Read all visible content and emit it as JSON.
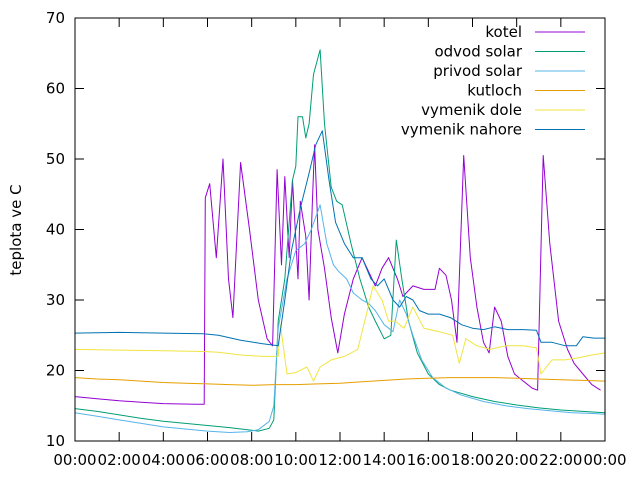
{
  "chart_data": {
    "type": "line",
    "title": "",
    "xlabel": "",
    "ylabel": "teplota ve C",
    "xlim": [
      0,
      24
    ],
    "ylim": [
      10,
      70
    ],
    "x_ticks": [
      "00:00",
      "02:00",
      "04:00",
      "06:00",
      "08:00",
      "10:00",
      "12:00",
      "14:00",
      "16:00",
      "18:00",
      "20:00",
      "22:00",
      "00:00"
    ],
    "y_ticks": [
      10,
      20,
      30,
      40,
      50,
      60,
      70
    ],
    "grid": false,
    "legend_position": "top-right",
    "series": [
      {
        "name": "kotel",
        "color": "#9400d3",
        "points": [
          [
            0,
            16.3
          ],
          [
            1,
            16.0
          ],
          [
            2,
            15.7
          ],
          [
            3,
            15.5
          ],
          [
            4,
            15.3
          ],
          [
            5.5,
            15.2
          ],
          [
            5.85,
            15.2
          ],
          [
            5.9,
            44.5
          ],
          [
            6.1,
            46.5
          ],
          [
            6.4,
            36
          ],
          [
            6.7,
            50
          ],
          [
            6.95,
            33
          ],
          [
            7.15,
            27.5
          ],
          [
            7.5,
            49.5
          ],
          [
            7.9,
            40
          ],
          [
            8.3,
            30
          ],
          [
            8.7,
            24.5
          ],
          [
            8.95,
            23.5
          ],
          [
            9.15,
            48.5
          ],
          [
            9.35,
            35
          ],
          [
            9.5,
            47.5
          ],
          [
            9.7,
            36
          ],
          [
            9.85,
            47
          ],
          [
            10.1,
            33
          ],
          [
            10.2,
            44
          ],
          [
            10.45,
            39
          ],
          [
            10.6,
            30
          ],
          [
            10.75,
            44
          ],
          [
            10.85,
            52
          ],
          [
            11.0,
            40
          ],
          [
            11.3,
            34.5
          ],
          [
            11.6,
            27.5
          ],
          [
            11.9,
            22.5
          ],
          [
            12.2,
            28
          ],
          [
            12.6,
            33
          ],
          [
            13.0,
            36
          ],
          [
            13.3,
            34
          ],
          [
            13.6,
            32
          ],
          [
            13.9,
            34.5
          ],
          [
            14.2,
            36
          ],
          [
            14.6,
            33
          ],
          [
            14.85,
            30.5
          ],
          [
            15.3,
            32
          ],
          [
            15.8,
            31.5
          ],
          [
            16.3,
            31.5
          ],
          [
            16.5,
            34.5
          ],
          [
            16.8,
            33.5
          ],
          [
            17.05,
            30
          ],
          [
            17.3,
            24
          ],
          [
            17.6,
            50.5
          ],
          [
            17.9,
            36
          ],
          [
            18.2,
            29
          ],
          [
            18.5,
            24
          ],
          [
            18.75,
            22.5
          ],
          [
            19.0,
            29
          ],
          [
            19.3,
            27
          ],
          [
            19.6,
            22
          ],
          [
            19.9,
            19.5
          ],
          [
            20.3,
            18.5
          ],
          [
            20.7,
            17.5
          ],
          [
            20.95,
            17.2
          ],
          [
            21.2,
            50.5
          ],
          [
            21.5,
            38
          ],
          [
            21.9,
            27
          ],
          [
            22.3,
            23
          ],
          [
            22.6,
            21
          ],
          [
            23,
            19.5
          ],
          [
            23.4,
            18
          ],
          [
            23.8,
            17.2
          ]
        ]
      },
      {
        "name": "odvod solar",
        "color": "#009e73",
        "points": [
          [
            0,
            14.6
          ],
          [
            1,
            14.2
          ],
          [
            2,
            13.7
          ],
          [
            3,
            13.2
          ],
          [
            4,
            12.8
          ],
          [
            5,
            12.5
          ],
          [
            6,
            12.2
          ],
          [
            7,
            11.9
          ],
          [
            7.8,
            11.6
          ],
          [
            8.3,
            11.4
          ],
          [
            8.8,
            11.8
          ],
          [
            9.0,
            13
          ],
          [
            9.2,
            27
          ],
          [
            9.5,
            33
          ],
          [
            9.7,
            41
          ],
          [
            9.85,
            47
          ],
          [
            10.0,
            49
          ],
          [
            10.1,
            56
          ],
          [
            10.3,
            56
          ],
          [
            10.45,
            53
          ],
          [
            10.6,
            55
          ],
          [
            10.8,
            62
          ],
          [
            11.1,
            65.5
          ],
          [
            11.3,
            55
          ],
          [
            11.6,
            46
          ],
          [
            11.85,
            44
          ],
          [
            12.1,
            43.5
          ],
          [
            12.5,
            38
          ],
          [
            12.9,
            33
          ],
          [
            13.3,
            29
          ],
          [
            13.6,
            27
          ],
          [
            14.0,
            24.5
          ],
          [
            14.3,
            25
          ],
          [
            14.55,
            38.5
          ],
          [
            14.8,
            33
          ],
          [
            15.1,
            27
          ],
          [
            15.5,
            22.5
          ],
          [
            16.0,
            19.5
          ],
          [
            16.5,
            18
          ],
          [
            17,
            17.2
          ],
          [
            18,
            16.3
          ],
          [
            19,
            15.6
          ],
          [
            20,
            15.1
          ],
          [
            21,
            14.7
          ],
          [
            22,
            14.4
          ],
          [
            23,
            14.2
          ],
          [
            24,
            14.0
          ]
        ]
      },
      {
        "name": "privod solar",
        "color": "#56b4e9",
        "points": [
          [
            0,
            14.0
          ],
          [
            1,
            13.5
          ],
          [
            2,
            13.0
          ],
          [
            3,
            12.5
          ],
          [
            4,
            12.0
          ],
          [
            5,
            11.7
          ],
          [
            6,
            11.4
          ],
          [
            7,
            11.2
          ],
          [
            7.8,
            11.3
          ],
          [
            8.3,
            11.6
          ],
          [
            8.8,
            12.8
          ],
          [
            9.0,
            15
          ],
          [
            9.2,
            26
          ],
          [
            9.6,
            33
          ],
          [
            10.0,
            37
          ],
          [
            10.4,
            38
          ],
          [
            10.7,
            40
          ],
          [
            11.1,
            43.5
          ],
          [
            11.4,
            38
          ],
          [
            11.7,
            35
          ],
          [
            11.95,
            34
          ],
          [
            12.3,
            33
          ],
          [
            12.6,
            31
          ],
          [
            13.0,
            30
          ],
          [
            13.3,
            29.5
          ],
          [
            13.6,
            28.5
          ],
          [
            14.0,
            26.5
          ],
          [
            14.4,
            25.5
          ],
          [
            14.7,
            30
          ],
          [
            15.0,
            28
          ],
          [
            15.3,
            25
          ],
          [
            15.7,
            21.5
          ],
          [
            16.2,
            19
          ],
          [
            16.8,
            17.5
          ],
          [
            17.5,
            16.5
          ],
          [
            18.5,
            15.6
          ],
          [
            19.5,
            15.0
          ],
          [
            20.5,
            14.6
          ],
          [
            21.5,
            14.3
          ],
          [
            22.5,
            14.0
          ],
          [
            23.5,
            13.9
          ],
          [
            24,
            13.8
          ]
        ]
      },
      {
        "name": "kutloch",
        "color": "#e69f00",
        "points": [
          [
            0,
            19.0
          ],
          [
            1,
            18.8
          ],
          [
            2,
            18.7
          ],
          [
            3,
            18.5
          ],
          [
            4,
            18.3
          ],
          [
            5,
            18.2
          ],
          [
            6,
            18.1
          ],
          [
            7,
            18.0
          ],
          [
            8,
            17.9
          ],
          [
            9,
            18.0
          ],
          [
            10,
            18.0
          ],
          [
            11,
            18.1
          ],
          [
            12,
            18.2
          ],
          [
            13,
            18.4
          ],
          [
            14,
            18.6
          ],
          [
            15,
            18.8
          ],
          [
            16,
            18.9
          ],
          [
            17,
            19.0
          ],
          [
            18,
            19.0
          ],
          [
            19,
            19.0
          ],
          [
            20,
            18.9
          ],
          [
            21,
            18.8
          ],
          [
            22,
            18.7
          ],
          [
            23,
            18.6
          ],
          [
            24,
            18.5
          ]
        ]
      },
      {
        "name": "vymenik dole",
        "color": "#f0e442",
        "points": [
          [
            0,
            23.0
          ],
          [
            2,
            22.9
          ],
          [
            4,
            22.8
          ],
          [
            5.8,
            22.7
          ],
          [
            6.5,
            22.6
          ],
          [
            7.5,
            22.2
          ],
          [
            8.5,
            22.0
          ],
          [
            9.2,
            22.0
          ],
          [
            9.3,
            26.5
          ],
          [
            9.6,
            19.5
          ],
          [
            10.0,
            19.7
          ],
          [
            10.5,
            20.5
          ],
          [
            10.8,
            18.5
          ],
          [
            11.1,
            20.5
          ],
          [
            11.6,
            21.5
          ],
          [
            12.2,
            22
          ],
          [
            12.8,
            23
          ],
          [
            13.2,
            28
          ],
          [
            13.5,
            32
          ],
          [
            13.9,
            30
          ],
          [
            14.2,
            27
          ],
          [
            14.5,
            27
          ],
          [
            14.9,
            26
          ],
          [
            15.3,
            29
          ],
          [
            15.8,
            26
          ],
          [
            16.5,
            25.5
          ],
          [
            17.1,
            25
          ],
          [
            17.4,
            21
          ],
          [
            17.7,
            24.5
          ],
          [
            18.2,
            23.5
          ],
          [
            18.8,
            23
          ],
          [
            19.5,
            23.5
          ],
          [
            20.3,
            23.5
          ],
          [
            20.9,
            23.2
          ],
          [
            21.1,
            19.5
          ],
          [
            21.6,
            21.5
          ],
          [
            22.2,
            21.5
          ],
          [
            22.8,
            21.8
          ],
          [
            23.4,
            22.2
          ],
          [
            24,
            22.5
          ]
        ]
      },
      {
        "name": "vymenik nahore",
        "color": "#0072b2",
        "points": [
          [
            0,
            25.3
          ],
          [
            2,
            25.4
          ],
          [
            4,
            25.3
          ],
          [
            5.8,
            25.2
          ],
          [
            6.5,
            25.0
          ],
          [
            7.5,
            24.3
          ],
          [
            8.5,
            23.8
          ],
          [
            9.2,
            23.5
          ],
          [
            9.5,
            30
          ],
          [
            9.8,
            37
          ],
          [
            10.2,
            43
          ],
          [
            10.6,
            48
          ],
          [
            10.9,
            52
          ],
          [
            11.2,
            54
          ],
          [
            11.5,
            47
          ],
          [
            11.8,
            41
          ],
          [
            12.2,
            38
          ],
          [
            12.6,
            36
          ],
          [
            13.0,
            36
          ],
          [
            13.4,
            33
          ],
          [
            13.7,
            32
          ],
          [
            14.0,
            33
          ],
          [
            14.4,
            30
          ],
          [
            14.7,
            29
          ],
          [
            15.0,
            30.5
          ],
          [
            15.3,
            30
          ],
          [
            15.6,
            28.5
          ],
          [
            16.0,
            28
          ],
          [
            16.5,
            28
          ],
          [
            17.0,
            27.5
          ],
          [
            17.5,
            26.5
          ],
          [
            18.0,
            26
          ],
          [
            18.5,
            25.8
          ],
          [
            19.0,
            26.2
          ],
          [
            19.6,
            25.8
          ],
          [
            20.3,
            25.8
          ],
          [
            20.9,
            25.7
          ],
          [
            21.1,
            24
          ],
          [
            21.6,
            24
          ],
          [
            22.2,
            23.5
          ],
          [
            22.7,
            23.5
          ],
          [
            23.0,
            24.8
          ],
          [
            23.5,
            24.6
          ],
          [
            24,
            24.6
          ]
        ]
      }
    ]
  }
}
